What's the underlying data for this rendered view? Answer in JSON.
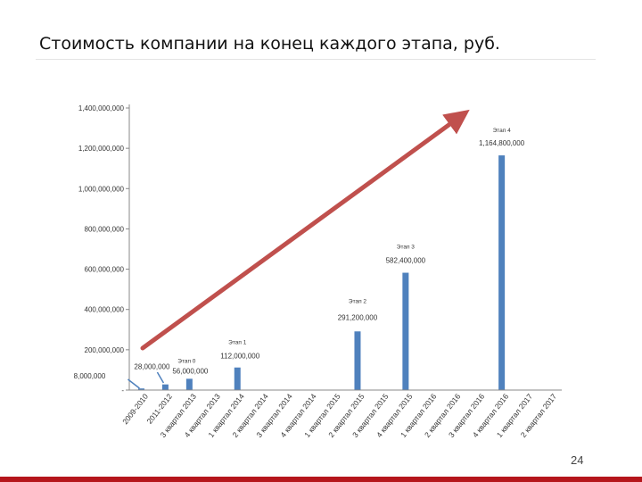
{
  "slide": {
    "title": "Стоимость  компании на конец каждого этапа, руб.",
    "page_number": "24"
  },
  "colors": {
    "bar": "#4f81bd",
    "trend_arrow": "#c0504d",
    "axis": "#888888",
    "footer": "#b5161b"
  },
  "chart_data": {
    "type": "bar",
    "ylim": [
      0,
      1400000000
    ],
    "grid": false,
    "y_ticks": [
      {
        "value": 1400000000,
        "label": "1,400,000,000"
      },
      {
        "value": 1200000000,
        "label": "1,200,000,000"
      },
      {
        "value": 1000000000,
        "label": "1,000,000,000"
      },
      {
        "value": 800000000,
        "label": "800,000,000"
      },
      {
        "value": 600000000,
        "label": "600,000,000"
      },
      {
        "value": 400000000,
        "label": "400,000,000"
      },
      {
        "value": 200000000,
        "label": "200,000,000"
      },
      {
        "value": 0,
        "label": "-"
      }
    ],
    "categories": [
      "2009-2010",
      "2011-2012",
      "3 квартал 2013",
      "4 квартал 2013",
      "1 квартал 2014",
      "2 квартал 2014",
      "3 квартал 2014",
      "4 квартал 2014",
      "1 квартал 2015",
      "2 квартал 2015",
      "3 квартал 2015",
      "4 квартал 2015",
      "1 квартал 2016",
      "2 квартал 2016",
      "3 квартал 2016",
      "4 квартал 2016",
      "1 квартал 2017",
      "2 квартал 2017"
    ],
    "values": [
      8000000,
      28000000,
      56000000,
      null,
      112000000,
      null,
      null,
      null,
      null,
      291200000,
      null,
      582400000,
      null,
      null,
      null,
      1164800000,
      null,
      null
    ],
    "data_labels": [
      {
        "index": 0,
        "text": "8,000,000"
      },
      {
        "index": 1,
        "text": "28,000,000"
      },
      {
        "index": 2,
        "text": "56,000,000"
      },
      {
        "index": 4,
        "text": "112,000,000"
      },
      {
        "index": 9,
        "text": "291,200,000"
      },
      {
        "index": 11,
        "text": "582,400,000"
      },
      {
        "index": 15,
        "text": "1,164,800,000"
      }
    ],
    "stage_labels": [
      {
        "index": 2,
        "text": "Этап 0"
      },
      {
        "index": 4,
        "text": "Этап 1"
      },
      {
        "index": 9,
        "text": "Этап 2"
      },
      {
        "index": 11,
        "text": "Этап 3"
      },
      {
        "index": 15,
        "text": "Этап 4"
      }
    ]
  }
}
